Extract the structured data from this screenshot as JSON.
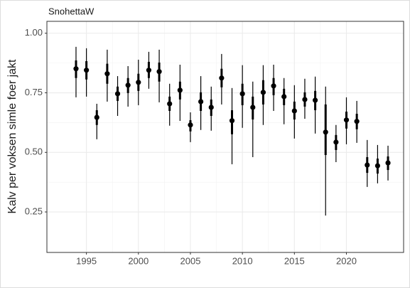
{
  "chart_data": {
    "type": "pointrange",
    "title": "SnohettaW",
    "y_label": "Kalv per voksen simle foer jakt",
    "x": [
      1994,
      1995,
      1996,
      1997,
      1998,
      1999,
      2000,
      2001,
      2002,
      2003,
      2004,
      2005,
      2006,
      2007,
      2008,
      2009,
      2010,
      2011,
      2012,
      2013,
      2014,
      2015,
      2016,
      2017,
      2018,
      2019,
      2020,
      2021,
      2022,
      2023,
      2024
    ],
    "series": [
      {
        "color": "#000000",
        "values": [
          0.851,
          0.845,
          0.647,
          0.83,
          0.746,
          0.782,
          0.794,
          0.845,
          0.839,
          0.704,
          0.761,
          0.615,
          0.713,
          0.689,
          0.812,
          0.633,
          0.746,
          0.689,
          0.752,
          0.779,
          0.734,
          0.674,
          0.722,
          0.719,
          0.585,
          0.543,
          0.636,
          0.63,
          0.447,
          0.444,
          0.456
        ],
        "inner_low": [
          0.812,
          0.806,
          0.615,
          0.788,
          0.716,
          0.749,
          0.758,
          0.812,
          0.797,
          0.674,
          0.722,
          0.588,
          0.674,
          0.653,
          0.773,
          0.576,
          0.698,
          0.638,
          0.701,
          0.74,
          0.698,
          0.638,
          0.692,
          0.677,
          0.489,
          0.51,
          0.6,
          0.597,
          0.414,
          0.411,
          0.426
        ],
        "inner_high": [
          0.886,
          0.883,
          0.677,
          0.872,
          0.776,
          0.812,
          0.83,
          0.88,
          0.877,
          0.734,
          0.797,
          0.635,
          0.752,
          0.722,
          0.851,
          0.677,
          0.788,
          0.734,
          0.803,
          0.812,
          0.767,
          0.713,
          0.752,
          0.758,
          0.701,
          0.573,
          0.671,
          0.662,
          0.48,
          0.474,
          0.483
        ],
        "outer_low": [
          0.731,
          0.734,
          0.555,
          0.713,
          0.653,
          0.692,
          0.698,
          0.767,
          0.71,
          0.612,
          0.632,
          0.543,
          0.594,
          0.591,
          0.701,
          0.45,
          0.603,
          0.48,
          0.615,
          0.674,
          0.618,
          0.558,
          0.641,
          0.579,
          0.235,
          0.459,
          0.534,
          0.54,
          0.355,
          0.37,
          0.382
        ],
        "outer_high": [
          0.943,
          0.937,
          0.704,
          0.931,
          0.82,
          0.862,
          0.889,
          0.922,
          0.931,
          0.788,
          0.868,
          0.668,
          0.82,
          0.776,
          0.913,
          0.77,
          0.866,
          0.797,
          0.866,
          0.868,
          0.812,
          0.782,
          0.809,
          0.818,
          0.776,
          0.615,
          0.731,
          0.716,
          0.552,
          0.531,
          0.528
        ]
      }
    ],
    "xlim": [
      1991.2,
      2025.5
    ],
    "xticks": [
      1995,
      2000,
      2005,
      2010,
      2015,
      2020
    ],
    "ylim": [
      0.08,
      1.05
    ],
    "yticks": [
      {
        "value": 0.25,
        "label": "0.25"
      },
      {
        "value": 0.5,
        "label": "0.50"
      },
      {
        "value": 0.75,
        "label": "0.75"
      },
      {
        "value": 1.0,
        "label": "1.00"
      }
    ],
    "grid": true
  }
}
